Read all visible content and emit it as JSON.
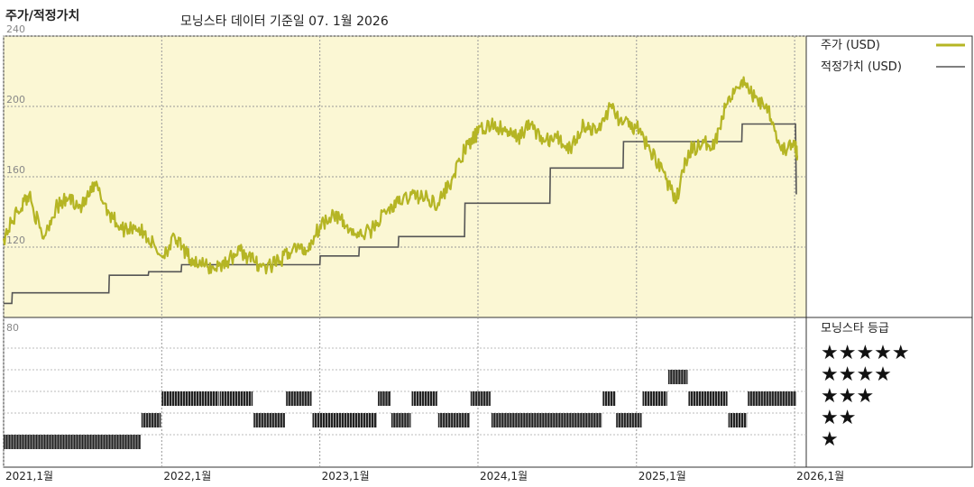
{
  "header": {
    "title": "주가/적정가치",
    "subtitle": "모닝스타 데이터 기준일 07. 1월 2026"
  },
  "legend": {
    "price_label": "주가 (USD)",
    "fair_label": "적정가치 (USD)",
    "rating_title": "모닝스타 등급",
    "price_color": "#b5b524",
    "fair_color": "#555555"
  },
  "rating_levels": [
    "★★★★★",
    "★★★★",
    "★★★",
    "★★",
    "★"
  ],
  "chart_data": {
    "type": "line",
    "x_range": [
      "2021-01-01",
      "2026-01-07"
    ],
    "x_ticks": [
      {
        "date": "2021-01-01",
        "label": "2021,1월"
      },
      {
        "date": "2022-01-01",
        "label": "2022,1월"
      },
      {
        "date": "2023-01-01",
        "label": "2023,1월"
      },
      {
        "date": "2024-01-01",
        "label": "2024,1월"
      },
      {
        "date": "2025-01-01",
        "label": "2025,1월"
      },
      {
        "date": "2026-01-01",
        "label": "2026,1월"
      }
    ],
    "y_range": [
      80,
      240
    ],
    "y_ticks": [
      120,
      160,
      200,
      240
    ],
    "y_extra_label": "80",
    "grid": true,
    "series": [
      {
        "name": "주가 (USD)",
        "points": [
          [
            "2021-01-01",
            125
          ],
          [
            "2021-02-01",
            140
          ],
          [
            "2021-03-01",
            150
          ],
          [
            "2021-04-01",
            125
          ],
          [
            "2021-05-01",
            142
          ],
          [
            "2021-06-01",
            148
          ],
          [
            "2021-07-01",
            143
          ],
          [
            "2021-08-01",
            155
          ],
          [
            "2021-09-01",
            140
          ],
          [
            "2021-10-01",
            130
          ],
          [
            "2021-11-01",
            132
          ],
          [
            "2021-12-01",
            125
          ],
          [
            "2022-01-01",
            115
          ],
          [
            "2022-02-01",
            125
          ],
          [
            "2022-03-01",
            115
          ],
          [
            "2022-04-01",
            110
          ],
          [
            "2022-05-01",
            108
          ],
          [
            "2022-06-01",
            112
          ],
          [
            "2022-07-01",
            118
          ],
          [
            "2022-08-01",
            112
          ],
          [
            "2022-09-01",
            108
          ],
          [
            "2022-10-01",
            112
          ],
          [
            "2022-11-01",
            120
          ],
          [
            "2022-12-01",
            118
          ],
          [
            "2023-01-01",
            132
          ],
          [
            "2023-02-01",
            140
          ],
          [
            "2023-03-01",
            132
          ],
          [
            "2023-04-01",
            126
          ],
          [
            "2023-05-01",
            130
          ],
          [
            "2023-06-01",
            140
          ],
          [
            "2023-07-01",
            145
          ],
          [
            "2023-08-01",
            150
          ],
          [
            "2023-09-01",
            148
          ],
          [
            "2023-10-01",
            145
          ],
          [
            "2023-11-01",
            158
          ],
          [
            "2023-12-01",
            175
          ],
          [
            "2024-01-01",
            185
          ],
          [
            "2024-02-01",
            190
          ],
          [
            "2024-03-01",
            186
          ],
          [
            "2024-04-01",
            182
          ],
          [
            "2024-05-01",
            190
          ],
          [
            "2024-06-01",
            180
          ],
          [
            "2024-07-01",
            182
          ],
          [
            "2024-08-01",
            176
          ],
          [
            "2024-09-01",
            190
          ],
          [
            "2024-10-01",
            185
          ],
          [
            "2024-11-01",
            200
          ],
          [
            "2024-12-01",
            190
          ],
          [
            "2025-01-01",
            188
          ],
          [
            "2025-02-01",
            175
          ],
          [
            "2025-03-01",
            165
          ],
          [
            "2025-04-01",
            145
          ],
          [
            "2025-05-01",
            175
          ],
          [
            "2025-06-01",
            178
          ],
          [
            "2025-07-01",
            180
          ],
          [
            "2025-08-01",
            205
          ],
          [
            "2025-09-01",
            215
          ],
          [
            "2025-10-01",
            205
          ],
          [
            "2025-11-01",
            200
          ],
          [
            "2025-12-01",
            175
          ],
          [
            "2026-01-01",
            178
          ],
          [
            "2026-01-07",
            172
          ]
        ]
      },
      {
        "name": "적정가치 (USD)",
        "points": [
          [
            "2021-01-01",
            88
          ],
          [
            "2021-01-20",
            88
          ],
          [
            "2021-01-21",
            94
          ],
          [
            "2021-09-01",
            94
          ],
          [
            "2021-09-02",
            104
          ],
          [
            "2021-12-01",
            104
          ],
          [
            "2021-12-02",
            106
          ],
          [
            "2022-02-15",
            106
          ],
          [
            "2022-02-16",
            110
          ],
          [
            "2022-10-01",
            110
          ],
          [
            "2022-10-02",
            110
          ],
          [
            "2023-01-01",
            110
          ],
          [
            "2023-01-02",
            115
          ],
          [
            "2023-04-01",
            115
          ],
          [
            "2023-04-02",
            120
          ],
          [
            "2023-07-01",
            120
          ],
          [
            "2023-07-02",
            126
          ],
          [
            "2023-12-01",
            126
          ],
          [
            "2023-12-02",
            145
          ],
          [
            "2024-06-15",
            145
          ],
          [
            "2024-06-16",
            165
          ],
          [
            "2024-12-01",
            165
          ],
          [
            "2024-12-02",
            180
          ],
          [
            "2025-09-01",
            180
          ],
          [
            "2025-09-02",
            190
          ],
          [
            "2026-01-03",
            190
          ],
          [
            "2026-01-05",
            150
          ]
        ]
      }
    ],
    "rating_series": {
      "levels": [
        1,
        2,
        3,
        4,
        5
      ],
      "segments": [
        {
          "start": "2021-01-01",
          "end": "2021-11-15",
          "rating": 1
        },
        {
          "start": "2021-11-15",
          "end": "2022-01-01",
          "rating": 2
        },
        {
          "start": "2022-01-01",
          "end": "2022-05-15",
          "rating": 3
        },
        {
          "start": "2022-05-15",
          "end": "2022-08-01",
          "rating": 3
        },
        {
          "start": "2022-08-01",
          "end": "2022-10-15",
          "rating": 2
        },
        {
          "start": "2022-10-15",
          "end": "2022-12-15",
          "rating": 3
        },
        {
          "start": "2022-12-15",
          "end": "2023-05-15",
          "rating": 2
        },
        {
          "start": "2023-05-15",
          "end": "2023-06-15",
          "rating": 3
        },
        {
          "start": "2023-06-15",
          "end": "2023-08-01",
          "rating": 2
        },
        {
          "start": "2023-08-01",
          "end": "2023-10-01",
          "rating": 3
        },
        {
          "start": "2023-10-01",
          "end": "2023-12-15",
          "rating": 2
        },
        {
          "start": "2023-12-15",
          "end": "2024-02-01",
          "rating": 3
        },
        {
          "start": "2024-02-01",
          "end": "2024-10-15",
          "rating": 2
        },
        {
          "start": "2024-10-15",
          "end": "2024-11-15",
          "rating": 3
        },
        {
          "start": "2024-11-15",
          "end": "2025-01-15",
          "rating": 2
        },
        {
          "start": "2025-01-15",
          "end": "2025-03-15",
          "rating": 3
        },
        {
          "start": "2025-03-15",
          "end": "2025-05-01",
          "rating": 4
        },
        {
          "start": "2025-05-01",
          "end": "2025-08-01",
          "rating": 3
        },
        {
          "start": "2025-08-01",
          "end": "2025-09-15",
          "rating": 2
        },
        {
          "start": "2025-09-15",
          "end": "2026-01-07",
          "rating": 3
        }
      ]
    }
  }
}
